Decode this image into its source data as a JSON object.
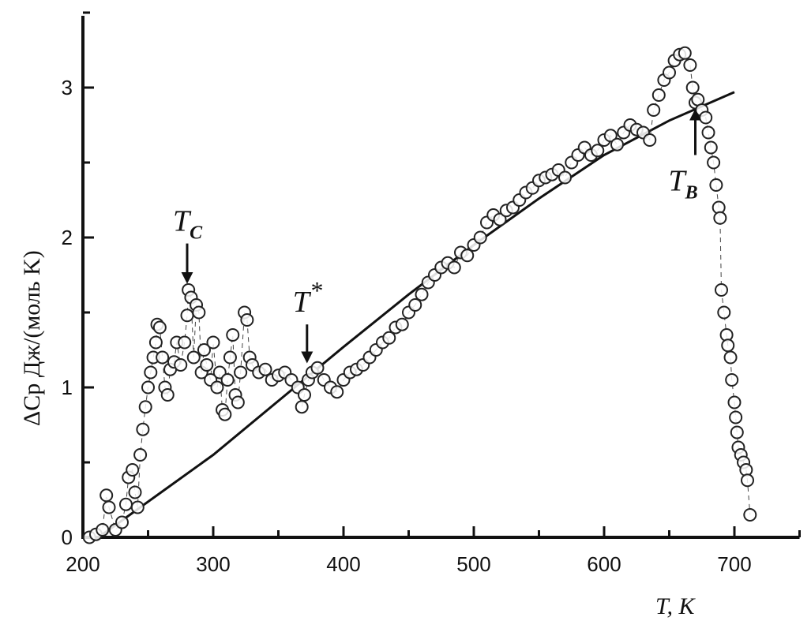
{
  "chart_data": {
    "type": "scatter",
    "title": "",
    "xlabel": "T, K",
    "ylabel": "ΔCp Дж/(моль K)",
    "xlim": [
      200,
      750
    ],
    "ylim": [
      0,
      3.5
    ],
    "xticks": [
      200,
      300,
      400,
      500,
      600,
      700
    ],
    "yticks": [
      0,
      1,
      2,
      3
    ],
    "grid": false,
    "colors": {
      "points": "#222222",
      "fit_line": "#111111"
    },
    "series": [
      {
        "marker": "open-circle",
        "x": [
          205,
          210,
          215,
          218,
          220,
          225,
          230,
          233,
          235,
          238,
          240,
          242,
          244,
          246,
          248,
          250,
          252,
          254,
          256,
          257,
          259,
          261,
          263,
          265,
          267,
          270,
          272,
          275,
          278,
          280,
          281,
          283,
          285,
          287,
          289,
          291,
          293,
          295,
          298,
          300,
          303,
          305,
          307,
          309,
          311,
          313,
          315,
          317,
          319,
          321,
          324,
          326,
          328,
          330,
          335,
          340,
          345,
          350,
          355,
          360,
          365,
          368,
          370,
          373,
          376,
          380,
          385,
          390,
          395,
          400,
          405,
          410,
          415,
          420,
          425,
          430,
          435,
          440,
          445,
          450,
          455,
          460,
          465,
          470,
          475,
          480,
          485,
          490,
          495,
          500,
          505,
          510,
          515,
          520,
          525,
          530,
          535,
          540,
          545,
          550,
          555,
          560,
          565,
          570,
          575,
          580,
          585,
          590,
          595,
          600,
          605,
          610,
          615,
          620,
          625,
          630,
          635,
          638,
          642,
          646,
          650,
          654,
          658,
          662,
          666,
          668,
          670,
          672,
          675,
          678,
          680,
          682,
          684,
          686,
          688,
          689,
          690,
          692,
          694,
          695,
          697,
          698,
          700,
          701,
          702,
          703,
          705,
          707,
          709,
          710,
          712
        ],
        "y": [
          0.0,
          0.02,
          0.05,
          0.28,
          0.2,
          0.05,
          0.1,
          0.22,
          0.4,
          0.45,
          0.3,
          0.2,
          0.55,
          0.72,
          0.87,
          1.0,
          1.1,
          1.2,
          1.3,
          1.42,
          1.4,
          1.2,
          1.0,
          0.95,
          1.12,
          1.17,
          1.3,
          1.15,
          1.3,
          1.48,
          1.65,
          1.6,
          1.2,
          1.55,
          1.5,
          1.1,
          1.25,
          1.15,
          1.05,
          1.3,
          1.0,
          1.1,
          0.85,
          0.82,
          1.05,
          1.2,
          1.35,
          0.95,
          0.9,
          1.1,
          1.5,
          1.45,
          1.2,
          1.15,
          1.1,
          1.12,
          1.05,
          1.08,
          1.1,
          1.05,
          1.0,
          0.87,
          0.95,
          1.05,
          1.1,
          1.13,
          1.05,
          1.0,
          0.97,
          1.05,
          1.1,
          1.12,
          1.15,
          1.2,
          1.25,
          1.3,
          1.33,
          1.4,
          1.42,
          1.5,
          1.55,
          1.62,
          1.7,
          1.75,
          1.8,
          1.83,
          1.8,
          1.9,
          1.88,
          1.95,
          2.0,
          2.1,
          2.15,
          2.12,
          2.18,
          2.2,
          2.25,
          2.3,
          2.33,
          2.38,
          2.4,
          2.42,
          2.45,
          2.4,
          2.5,
          2.55,
          2.6,
          2.55,
          2.58,
          2.65,
          2.68,
          2.62,
          2.7,
          2.75,
          2.72,
          2.7,
          2.65,
          2.85,
          2.95,
          3.05,
          3.1,
          3.18,
          3.22,
          3.23,
          3.15,
          3.0,
          2.9,
          2.92,
          2.85,
          2.8,
          2.7,
          2.6,
          2.5,
          2.35,
          2.2,
          2.13,
          1.65,
          1.5,
          1.35,
          1.28,
          1.2,
          1.05,
          0.9,
          0.8,
          0.7,
          0.6,
          0.55,
          0.5,
          0.45,
          0.38,
          0.15
        ]
      },
      {
        "marker": "line",
        "x": [
          215,
          220,
          260,
          300,
          350,
          400,
          450,
          500,
          550,
          600,
          650,
          700
        ],
        "y": [
          0.02,
          0.05,
          0.3,
          0.55,
          0.91,
          1.27,
          1.62,
          1.95,
          2.26,
          2.55,
          2.78,
          2.97
        ]
      }
    ],
    "annotations": [
      {
        "label": "T",
        "sub": "C",
        "x": 280,
        "arrow": "down",
        "arrow_from": 1.96,
        "arrow_to": 1.73
      },
      {
        "label": "T",
        "sup": "*",
        "x": 372,
        "arrow": "down",
        "arrow_from": 1.42,
        "arrow_to": 1.2
      },
      {
        "label": "T",
        "sub": "B",
        "x": 670,
        "arrow": "up",
        "arrow_from": 2.55,
        "arrow_to": 2.82
      }
    ]
  }
}
